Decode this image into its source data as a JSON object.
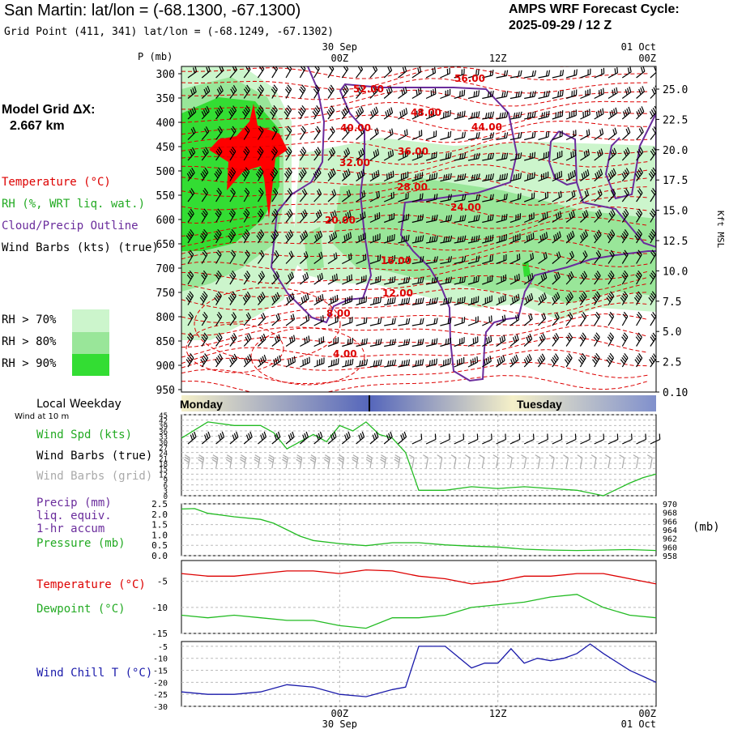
{
  "header": {
    "site_title": "San Martin:  lat/lon = (-68.1300, -67.1300)",
    "grid_point": "Grid Point (411, 341) lat/lon = (-68.1249, -67.1302)",
    "cycle_line1": "AMPS WRF Forecast Cycle:",
    "cycle_line2": "2025-09-29 / 12  Z"
  },
  "sidebar": {
    "model_grid_label": "Model Grid ΔX:",
    "model_grid_value": "2.667 km",
    "temperature_label": "Temperature (°C)",
    "rh_label": "RH (%, WRT liq. wat.)",
    "cloud_label": "Cloud/Precip Outline",
    "wind_label": "Wind Barbs (kts) (true)",
    "rh_legend": [
      {
        "label": "RH > 70%",
        "color": "#ccf5cc"
      },
      {
        "label": "RH > 80%",
        "color": "#99e699"
      },
      {
        "label": "RH > 90%",
        "color": "#33dd33"
      }
    ],
    "local_weekday": "Local Weekday",
    "wind_at_10m": "Wind at 10 m",
    "wind_spd_label": "Wind Spd (kts)",
    "wind_barbs_true": "Wind Barbs (true)",
    "wind_barbs_grid": "Wind Barbs (grid)",
    "precip_label": "Precip (mm)",
    "liq_equiv": "liq. equiv.",
    "accum": "1-hr accum",
    "pressure_label": "Pressure (mb)",
    "pressure_unit": "(mb)",
    "temp2_label": "Temperature (°C)",
    "dewpoint_label": "Dewpoint (°C)",
    "windchill_label": "Wind Chill T (°C)"
  },
  "colors": {
    "temperature": "#dd0000",
    "rh70": "#ccf5cc",
    "rh80": "#99e699",
    "rh90": "#33dd33",
    "cloud_outline": "#6a2c9c",
    "wind_speed": "#22bb22",
    "pressure": "#22bb22",
    "precip": "#6a2c9c",
    "dewpoint": "#22bb22",
    "windchill": "#1a1aaa",
    "monday_bar": "#5566bb",
    "tuesday_bar": "#f5f0c8"
  },
  "chart_data": [
    {
      "type": "heatmap",
      "name": "vertical cross-section",
      "y_title": "P (mb)",
      "right_title": "Kft MSL",
      "y_ticks": [
        300,
        350,
        400,
        450,
        500,
        550,
        600,
        650,
        700,
        750,
        800,
        850,
        900,
        950
      ],
      "ylim": [
        955,
        285
      ],
      "right_ticks": [
        "25.0",
        "22.5",
        "20.0",
        "17.5",
        "15.0",
        "12.5",
        "10.0",
        "7.5",
        "5.0",
        "2.5",
        "0.10"
      ],
      "x_top_labels": [
        {
          "date": "30 Sep",
          "time": "00Z",
          "hour": 12
        },
        {
          "date": "",
          "time": "12Z",
          "hour": 24
        },
        {
          "date": "01 Oct",
          "time": "00Z",
          "hour": 36
        }
      ],
      "xlim": [
        0,
        36
      ],
      "temperature_contour_labels": [
        "56.00",
        "52.00",
        "48.00",
        "44.00",
        "40.00",
        "36.00",
        "32.00",
        "28.00",
        "24.00",
        "20.00",
        "16.00",
        "12.00",
        "8.00",
        "4.00"
      ]
    },
    {
      "type": "line",
      "name": "wind speed",
      "y_ticks": [
        0,
        3,
        6,
        9,
        12,
        15,
        18,
        21,
        24,
        27,
        30,
        33,
        36,
        39,
        42,
        45
      ],
      "ylim": [
        0,
        45
      ],
      "x": [
        0,
        2,
        4,
        6,
        7,
        8,
        10,
        11,
        12,
        13,
        14,
        15,
        16,
        17,
        18,
        20,
        22,
        24,
        26,
        28,
        30,
        32,
        34,
        35,
        36
      ],
      "series": [
        {
          "name": "Wind Spd (kts)",
          "values": [
            32,
            41,
            39,
            39,
            35,
            26,
            34,
            30,
            39,
            36,
            41,
            34,
            32,
            24,
            3,
            3,
            5,
            4,
            5,
            4,
            3,
            0,
            7,
            10,
            12
          ]
        }
      ]
    },
    {
      "type": "line",
      "name": "precip & pressure",
      "y_ticks": [
        "0.0",
        "0.5",
        "1.0",
        "1.5",
        "2.0",
        "2.5"
      ],
      "ylim": [
        0,
        2.5
      ],
      "right_ticks": [
        958,
        960,
        962,
        964,
        966,
        968,
        970
      ],
      "right_lim": [
        958,
        970
      ],
      "x": [
        0,
        1,
        2,
        4,
        6,
        7,
        8,
        9,
        10,
        12,
        14,
        16,
        18,
        20,
        22,
        24,
        26,
        28,
        30,
        32,
        34,
        36
      ],
      "series": [
        {
          "name": "Pressure (mb)",
          "values": [
            968.8,
            968.9,
            967.8,
            967.0,
            966.4,
            965.5,
            964.0,
            962.5,
            961.5,
            960.8,
            960.3,
            961.0,
            961.0,
            960.5,
            960.2,
            960.0,
            959.5,
            959.3,
            959.2,
            959.3,
            959.4,
            959.2
          ]
        }
      ]
    },
    {
      "type": "line",
      "name": "temperature & dewpoint",
      "y_ticks": [
        -15,
        -10,
        -5
      ],
      "ylim": [
        -15,
        -1
      ],
      "x": [
        0,
        2,
        4,
        6,
        8,
        10,
        12,
        14,
        16,
        18,
        20,
        22,
        24,
        26,
        28,
        30,
        32,
        34,
        36
      ],
      "series": [
        {
          "name": "Temperature (°C)",
          "values": [
            -3.5,
            -4.0,
            -4.0,
            -3.5,
            -3.0,
            -3.0,
            -3.5,
            -2.8,
            -3.0,
            -4.0,
            -4.5,
            -5.5,
            -5.0,
            -4.0,
            -4.0,
            -3.5,
            -3.5,
            -4.5,
            -5.5
          ]
        },
        {
          "name": "Dewpoint (°C)",
          "values": [
            -11.5,
            -12.0,
            -11.5,
            -12.0,
            -12.5,
            -12.5,
            -13.5,
            -14.0,
            -12.0,
            -12.0,
            -11.5,
            -10.0,
            -9.5,
            -9.0,
            -8.0,
            -7.5,
            -10.0,
            -11.5,
            -12.0
          ]
        }
      ]
    },
    {
      "type": "line",
      "name": "wind chill",
      "y_ticks": [
        -30,
        -25,
        -20,
        -15,
        -10,
        -5
      ],
      "ylim": [
        -30,
        -3
      ],
      "x": [
        0,
        2,
        4,
        6,
        8,
        10,
        12,
        14,
        16,
        17,
        18,
        20,
        22,
        23,
        24,
        25,
        26,
        27,
        28,
        29,
        30,
        31,
        32,
        34,
        36
      ],
      "series": [
        {
          "name": "Wind Chill T (°C)",
          "values": [
            -24,
            -25,
            -25,
            -24,
            -21,
            -22,
            -25,
            -26,
            -23,
            -22,
            -5,
            -5,
            -14,
            -12,
            -12,
            -6,
            -12,
            -10,
            -11,
            -10,
            -8,
            -4,
            -8,
            -15,
            -20
          ]
        }
      ]
    }
  ],
  "weekday_bar": {
    "monday": "Monday",
    "tuesday": "Tuesday"
  }
}
